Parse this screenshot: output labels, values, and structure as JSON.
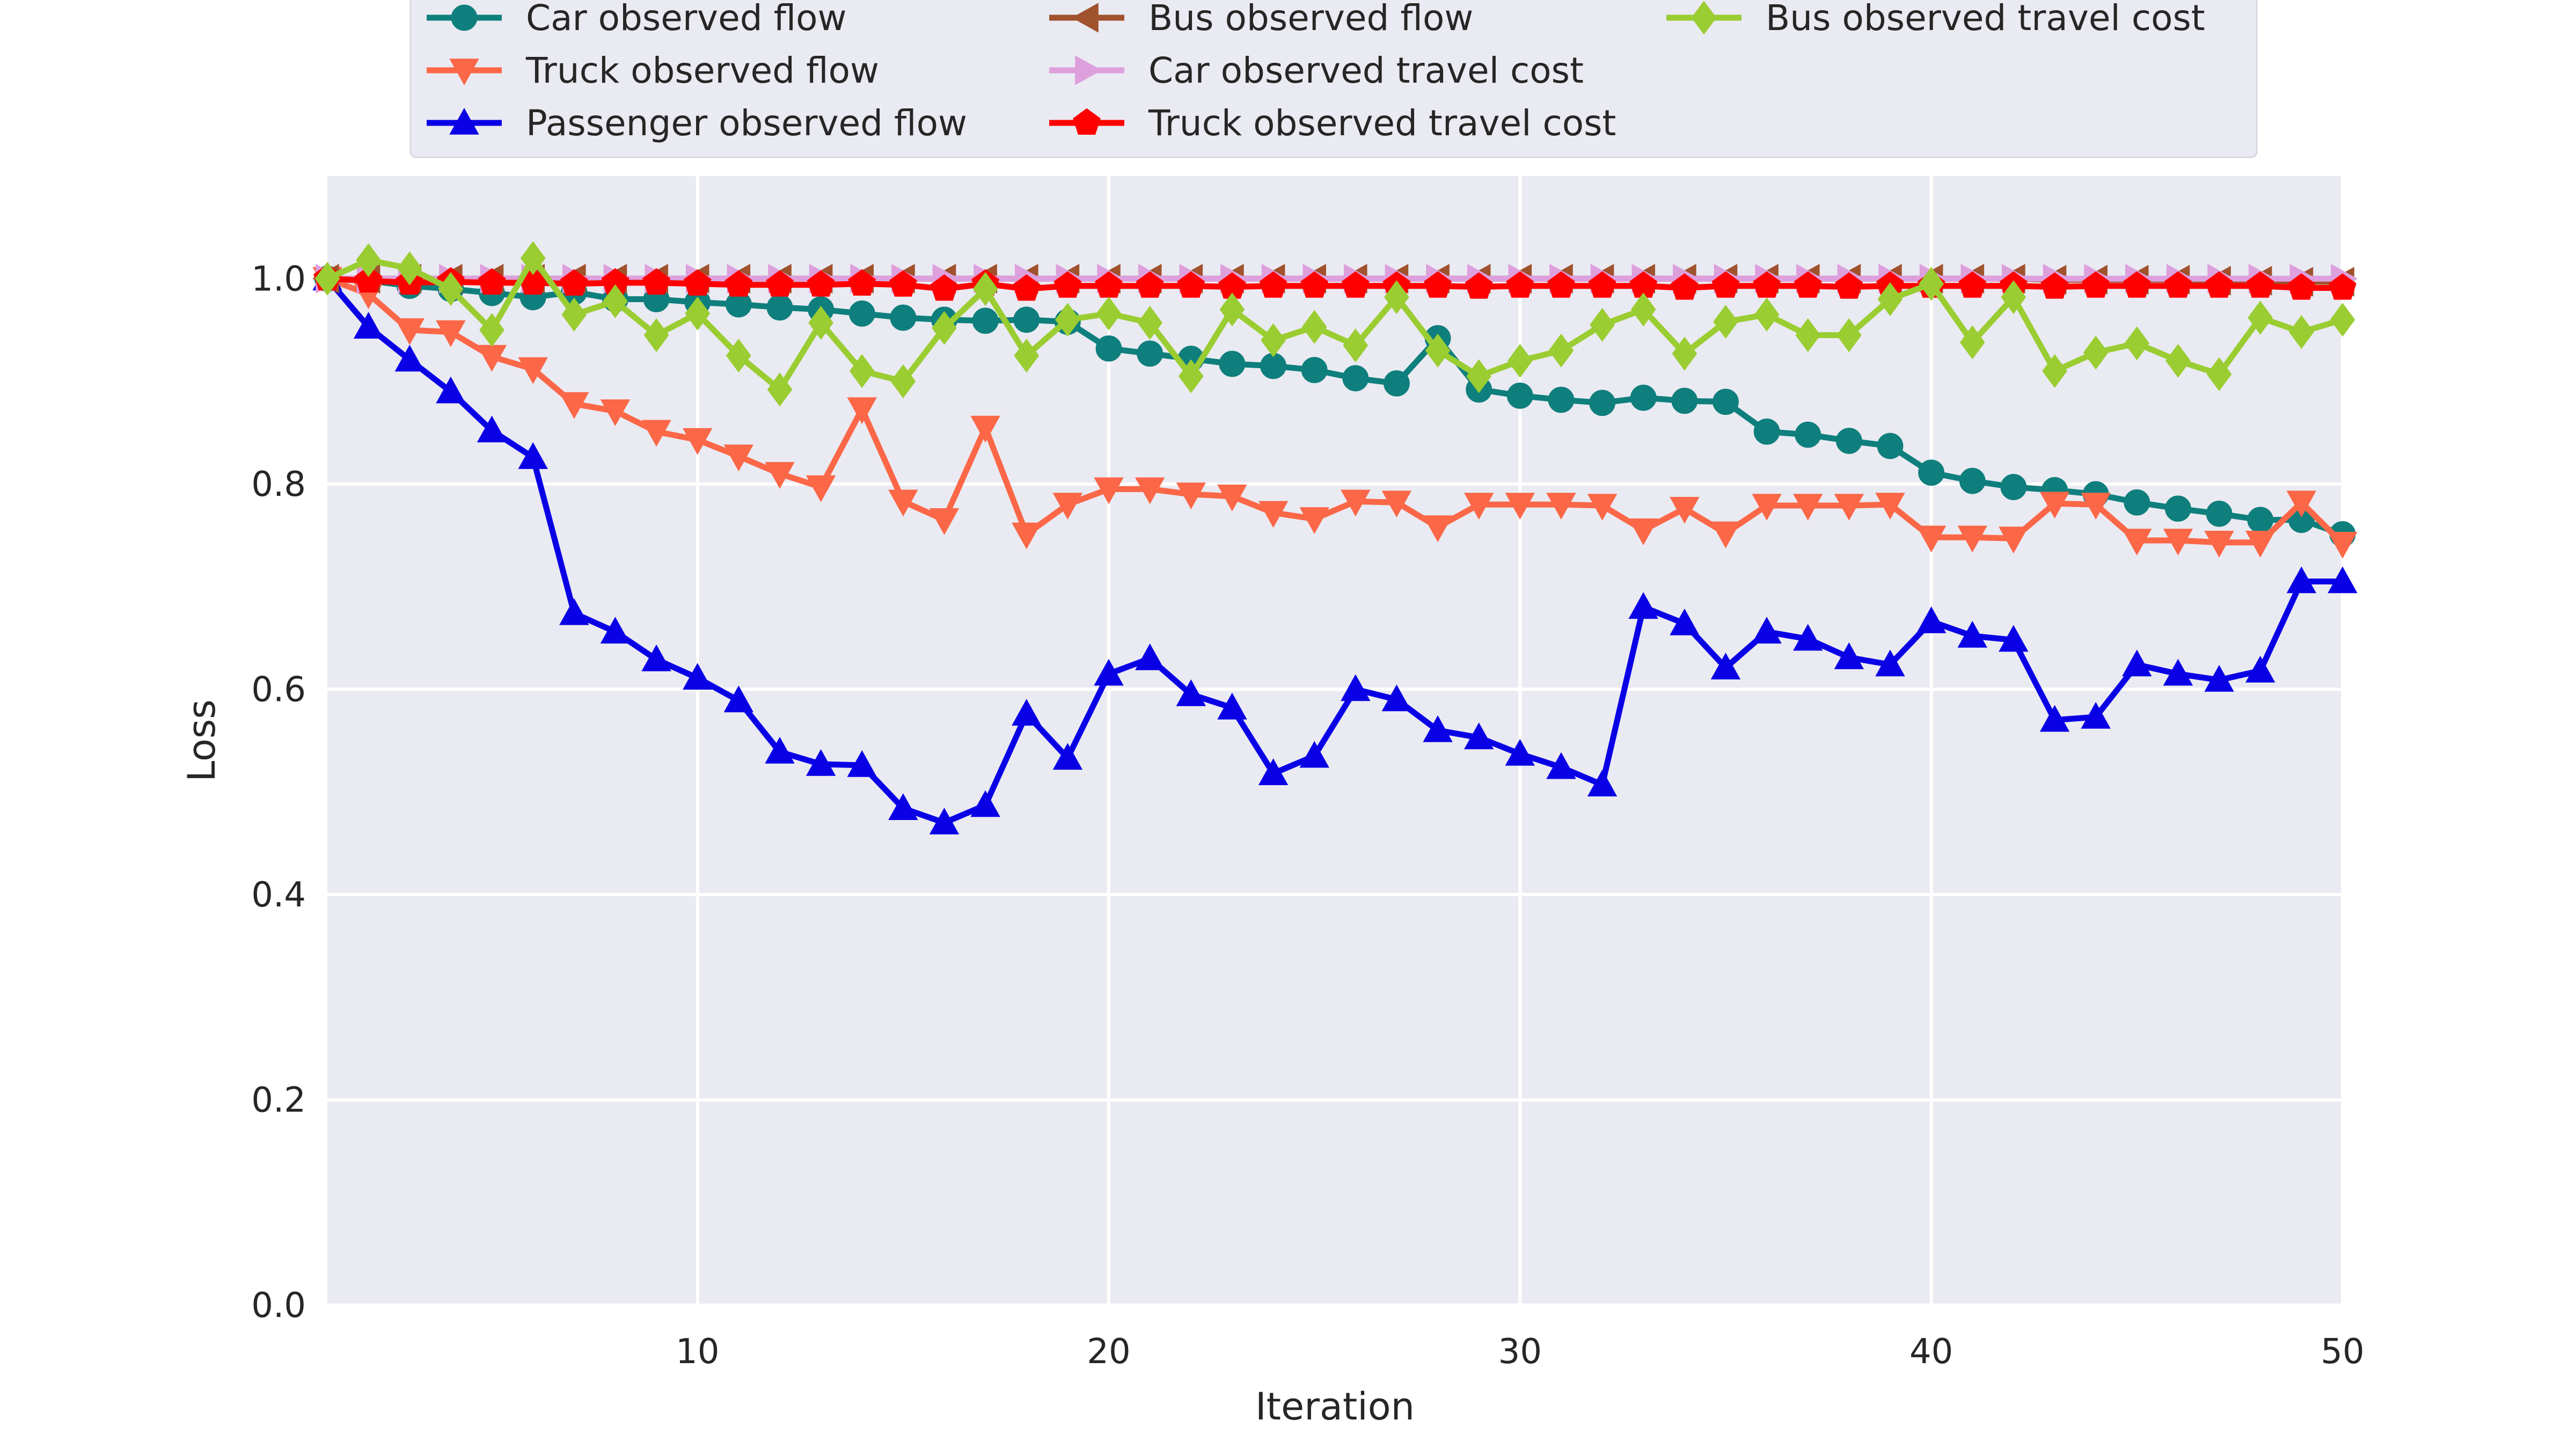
{
  "chart_data": {
    "type": "line",
    "title": "",
    "xlabel": "Iteration",
    "ylabel": "Loss",
    "xlim": [
      1,
      50
    ],
    "ylim": [
      0,
      1.1
    ],
    "xticks": [
      "10",
      "20",
      "30",
      "40",
      "50"
    ],
    "yticks": [
      "0.0",
      "0.2",
      "0.4",
      "0.6",
      "0.8",
      "1.0"
    ],
    "grid": true,
    "legend_position": "top",
    "x": [
      1,
      2,
      3,
      4,
      5,
      6,
      7,
      8,
      9,
      10,
      11,
      12,
      13,
      14,
      15,
      16,
      17,
      18,
      19,
      20,
      21,
      22,
      23,
      24,
      25,
      26,
      27,
      28,
      29,
      30,
      31,
      32,
      33,
      34,
      35,
      36,
      37,
      38,
      39,
      40,
      41,
      42,
      43,
      44,
      45,
      46,
      47,
      48,
      49,
      50
    ],
    "series": [
      {
        "name": "Car observed flow",
        "color": "#0e7f7c",
        "marker": "circle",
        "values": [
          1.0,
          0.998,
          0.993,
          0.99,
          0.986,
          0.982,
          0.987,
          0.98,
          0.98,
          0.977,
          0.975,
          0.972,
          0.97,
          0.966,
          0.962,
          0.96,
          0.959,
          0.96,
          0.958,
          0.932,
          0.927,
          0.922,
          0.917,
          0.915,
          0.911,
          0.903,
          0.898,
          0.942,
          0.892,
          0.886,
          0.882,
          0.879,
          0.884,
          0.881,
          0.88,
          0.851,
          0.848,
          0.842,
          0.837,
          0.811,
          0.803,
          0.797,
          0.794,
          0.79,
          0.782,
          0.776,
          0.771,
          0.765,
          0.765,
          0.751
        ]
      },
      {
        "name": "Truck observed flow",
        "color": "#fb6747",
        "marker": "triangle-down",
        "values": [
          1.0,
          0.985,
          0.95,
          0.948,
          0.924,
          0.912,
          0.878,
          0.871,
          0.851,
          0.843,
          0.827,
          0.81,
          0.797,
          0.873,
          0.783,
          0.765,
          0.855,
          0.751,
          0.78,
          0.795,
          0.795,
          0.79,
          0.788,
          0.772,
          0.766,
          0.783,
          0.782,
          0.758,
          0.78,
          0.78,
          0.78,
          0.779,
          0.755,
          0.776,
          0.752,
          0.779,
          0.779,
          0.779,
          0.78,
          0.748,
          0.748,
          0.747,
          0.781,
          0.78,
          0.745,
          0.745,
          0.743,
          0.743,
          0.782,
          0.742
        ]
      },
      {
        "name": "Passenger observed flow",
        "color": "#0a00e6",
        "marker": "triangle-up",
        "values": [
          1.0,
          0.953,
          0.921,
          0.89,
          0.852,
          0.826,
          0.674,
          0.656,
          0.629,
          0.611,
          0.589,
          0.539,
          0.527,
          0.526,
          0.484,
          0.47,
          0.487,
          0.576,
          0.533,
          0.615,
          0.63,
          0.595,
          0.582,
          0.518,
          0.535,
          0.6,
          0.59,
          0.56,
          0.553,
          0.537,
          0.524,
          0.507,
          0.68,
          0.664,
          0.621,
          0.656,
          0.649,
          0.631,
          0.624,
          0.666,
          0.652,
          0.648,
          0.57,
          0.573,
          0.624,
          0.615,
          0.609,
          0.618,
          0.705,
          0.705
        ]
      },
      {
        "name": "Bus observed flow",
        "color": "#a0522d",
        "marker": "triangle-left",
        "values": [
          1.0,
          1.0,
          1.0,
          1.0,
          1.0,
          1.0,
          1.0,
          1.0,
          1.0,
          1.0,
          1.0,
          1.0,
          1.0,
          1.0,
          1.0,
          1.0,
          1.0,
          1.0,
          1.0,
          1.0,
          1.0,
          1.0,
          1.0,
          1.0,
          1.0,
          1.0,
          1.0,
          1.0,
          1.0,
          1.0,
          1.0,
          1.0,
          1.0,
          1.0,
          1.0,
          1.0,
          1.0,
          1.0,
          1.0,
          1.0,
          1.0,
          1.0,
          0.999,
          0.999,
          0.999,
          0.999,
          0.998,
          0.998,
          0.997,
          0.997
        ]
      },
      {
        "name": "Car observed travel cost",
        "color": "#dda0dd",
        "marker": "triangle-right",
        "values": [
          1.0,
          1.0,
          1.0,
          1.0,
          1.0,
          1.0,
          1.0,
          1.0,
          1.0,
          1.0,
          1.0,
          1.0,
          1.0,
          1.0,
          1.0,
          1.0,
          1.0,
          1.0,
          1.0,
          1.0,
          1.0,
          1.0,
          1.0,
          1.0,
          1.0,
          1.0,
          1.0,
          1.0,
          1.0,
          1.0,
          1.0,
          1.0,
          1.0,
          1.0,
          1.0,
          1.0,
          1.0,
          1.0,
          1.0,
          1.0,
          1.0,
          1.0,
          1.0,
          1.0,
          1.0,
          1.0,
          1.0,
          1.0,
          1.0,
          1.0
        ]
      },
      {
        "name": "Truck observed travel cost",
        "color": "#ff0000",
        "marker": "pentagon",
        "values": [
          1.0,
          0.998,
          0.996,
          0.997,
          0.996,
          0.996,
          0.995,
          0.996,
          0.996,
          0.995,
          0.994,
          0.994,
          0.994,
          0.995,
          0.994,
          0.99,
          0.995,
          0.99,
          0.993,
          0.993,
          0.993,
          0.993,
          0.992,
          0.993,
          0.993,
          0.993,
          0.993,
          0.993,
          0.992,
          0.993,
          0.993,
          0.993,
          0.993,
          0.991,
          0.993,
          0.993,
          0.993,
          0.992,
          0.993,
          0.993,
          0.993,
          0.993,
          0.992,
          0.993,
          0.993,
          0.993,
          0.993,
          0.993,
          0.991,
          0.991
        ]
      },
      {
        "name": "Bus observed travel cost",
        "color": "#9acd32",
        "marker": "diamond",
        "values": [
          1.0,
          1.018,
          1.01,
          0.99,
          0.95,
          1.02,
          0.965,
          0.978,
          0.945,
          0.966,
          0.925,
          0.892,
          0.957,
          0.91,
          0.9,
          0.952,
          0.99,
          0.925,
          0.96,
          0.966,
          0.957,
          0.905,
          0.97,
          0.94,
          0.953,
          0.935,
          0.982,
          0.93,
          0.905,
          0.92,
          0.93,
          0.955,
          0.97,
          0.927,
          0.958,
          0.965,
          0.945,
          0.945,
          0.98,
          0.995,
          0.938,
          0.982,
          0.91,
          0.928,
          0.937,
          0.92,
          0.907,
          0.962,
          0.948,
          0.96
        ]
      }
    ]
  }
}
